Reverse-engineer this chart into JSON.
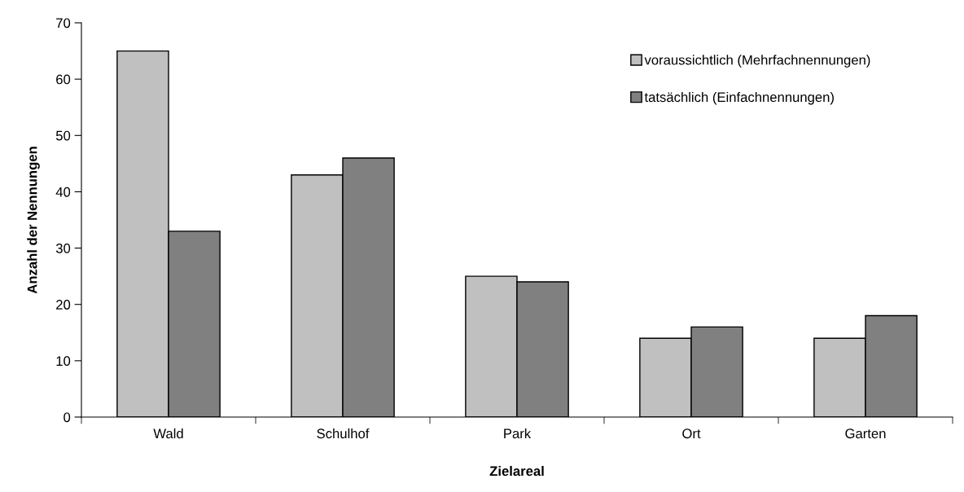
{
  "chart_data": {
    "type": "bar",
    "xlabel": "Zielareal",
    "ylabel": "Anzahl der Nennungen",
    "categories": [
      "Wald",
      "Schulhof",
      "Park",
      "Ort",
      "Garten"
    ],
    "series": [
      {
        "name": "voraussichtlich (Mehrfachnennungen)",
        "color": "#c0c0c0",
        "values": [
          65,
          43,
          25,
          14,
          14
        ]
      },
      {
        "name": "tatsächlich (Einfachnennungen)",
        "color": "#808080",
        "values": [
          33,
          46,
          24,
          16,
          18
        ]
      }
    ],
    "ylim": [
      0,
      70
    ],
    "yticks": [
      0,
      10,
      20,
      30,
      40,
      50,
      60,
      70
    ],
    "grid": false,
    "legend": "top right"
  }
}
